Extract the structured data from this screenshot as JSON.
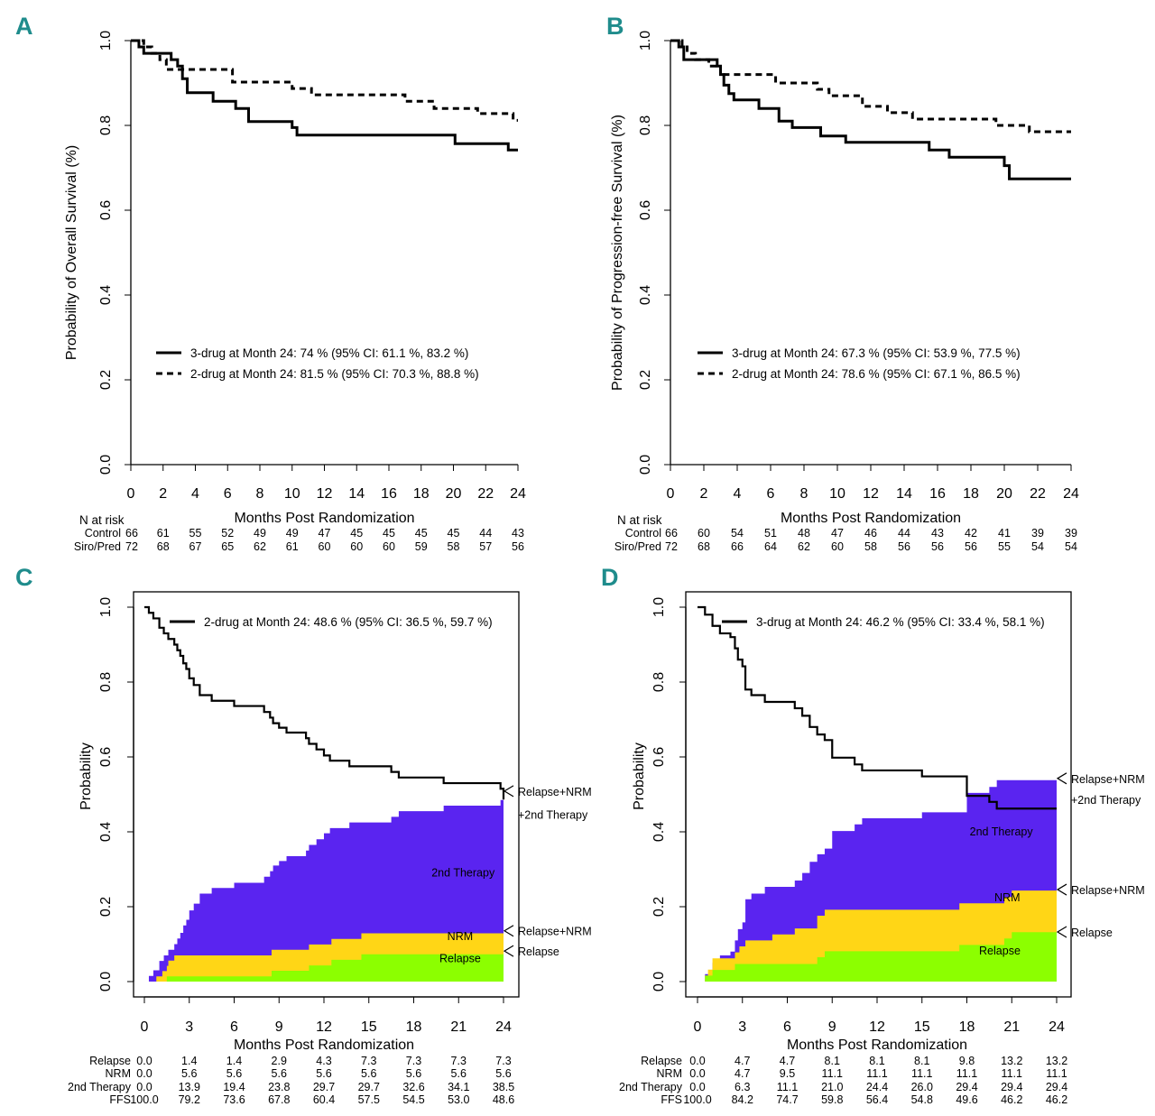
{
  "colors": {
    "letter": "#1f8c8c",
    "second_therapy": "#5a24f0",
    "nrm": "#ffd616",
    "relapse": "#8cff00",
    "inner_label_light": "#ffffff"
  },
  "chart_data": [
    {
      "panel": "A",
      "type": "line",
      "ylabel": "Probability of Overall Survival (%)",
      "xlabel": "Months Post Randomization",
      "xlim": [
        0,
        24
      ],
      "ylim": [
        0,
        1
      ],
      "xticks": [
        "0",
        "2",
        "4",
        "6",
        "8",
        "10",
        "12",
        "14",
        "16",
        "18",
        "20",
        "22",
        "24"
      ],
      "yticks": [
        "0.0",
        "0.2",
        "0.4",
        "0.6",
        "0.8",
        "1.0"
      ],
      "legend": [
        {
          "label": "3-drug at Month 24: 74 % (95% CI: 61.1 %, 83.2 %)",
          "style": "solid"
        },
        {
          "label": "2-drug at Month 24: 81.5 % (95% CI: 70.3 %, 88.8 %)",
          "style": "dashed"
        }
      ],
      "series": [
        {
          "name": "3-drug",
          "style": "solid",
          "steps": [
            [
              0,
              1
            ],
            [
              0.5,
              0.985
            ],
            [
              0.8,
              0.97
            ],
            [
              2.5,
              0.955
            ],
            [
              2.9,
              0.94
            ],
            [
              3.2,
              0.91
            ],
            [
              3.5,
              0.877
            ],
            [
              5.1,
              0.857
            ],
            [
              6.5,
              0.84
            ],
            [
              7.3,
              0.809
            ],
            [
              10,
              0.795
            ],
            [
              10.3,
              0.777
            ],
            [
              20.1,
              0.757
            ],
            [
              23.4,
              0.742
            ]
          ]
        },
        {
          "name": "2-drug",
          "style": "dashed",
          "steps": [
            [
              0,
              1
            ],
            [
              0.8,
              0.985
            ],
            [
              1.3,
              0.97
            ],
            [
              1.8,
              0.955
            ],
            [
              2.2,
              0.932
            ],
            [
              6.3,
              0.902
            ],
            [
              10,
              0.887
            ],
            [
              11.2,
              0.872
            ],
            [
              17,
              0.857
            ],
            [
              18.8,
              0.84
            ],
            [
              21.5,
              0.828
            ],
            [
              23.7,
              0.812
            ]
          ]
        }
      ],
      "risk_table": {
        "title": "N at risk",
        "rows": [
          {
            "label": "Control",
            "values": [
              "66",
              "61",
              "55",
              "52",
              "49",
              "49",
              "47",
              "45",
              "45",
              "45",
              "45",
              "44",
              "43"
            ]
          },
          {
            "label": "Siro/Pred",
            "values": [
              "72",
              "68",
              "67",
              "65",
              "62",
              "61",
              "60",
              "60",
              "60",
              "59",
              "58",
              "57",
              "56"
            ]
          }
        ]
      }
    },
    {
      "panel": "B",
      "type": "line",
      "ylabel": "Probability of Progression-free Survival (%)",
      "xlabel": "Months Post Randomization",
      "xlim": [
        0,
        24
      ],
      "ylim": [
        0,
        1
      ],
      "xticks": [
        "0",
        "2",
        "4",
        "6",
        "8",
        "10",
        "12",
        "14",
        "16",
        "18",
        "20",
        "22",
        "24"
      ],
      "yticks": [
        "0.0",
        "0.2",
        "0.4",
        "0.6",
        "0.8",
        "1.0"
      ],
      "legend": [
        {
          "label": "3-drug at Month 24: 67.3 % (95% CI: 53.9 %, 77.5 %)",
          "style": "solid"
        },
        {
          "label": "2-drug at Month 24: 78.6 % (95% CI: 67.1 %, 86.5 %)",
          "style": "dashed"
        }
      ],
      "series": [
        {
          "name": "3-drug",
          "style": "solid",
          "steps": [
            [
              0,
              1
            ],
            [
              0.5,
              0.985
            ],
            [
              0.8,
              0.955
            ],
            [
              2.8,
              0.94
            ],
            [
              3,
              0.92
            ],
            [
              3.2,
              0.895
            ],
            [
              3.5,
              0.875
            ],
            [
              3.8,
              0.86
            ],
            [
              5.3,
              0.84
            ],
            [
              6.5,
              0.81
            ],
            [
              7.3,
              0.795
            ],
            [
              9,
              0.775
            ],
            [
              10.5,
              0.76
            ],
            [
              15.5,
              0.742
            ],
            [
              16.7,
              0.725
            ],
            [
              20,
              0.705
            ],
            [
              20.3,
              0.674
            ]
          ]
        },
        {
          "name": "2-drug",
          "style": "dashed",
          "steps": [
            [
              0,
              1
            ],
            [
              0.7,
              0.985
            ],
            [
              1,
              0.97
            ],
            [
              1.5,
              0.955
            ],
            [
              2.3,
              0.94
            ],
            [
              3,
              0.92
            ],
            [
              6.3,
              0.9
            ],
            [
              8.8,
              0.885
            ],
            [
              9.5,
              0.87
            ],
            [
              11.5,
              0.845
            ],
            [
              13,
              0.83
            ],
            [
              14.5,
              0.815
            ],
            [
              19.5,
              0.8
            ],
            [
              21.5,
              0.785
            ]
          ]
        }
      ],
      "risk_table": {
        "title": "N at risk",
        "rows": [
          {
            "label": "Control",
            "values": [
              "66",
              "60",
              "54",
              "51",
              "48",
              "47",
              "46",
              "44",
              "43",
              "42",
              "41",
              "39",
              "39"
            ]
          },
          {
            "label": "Siro/Pred",
            "values": [
              "72",
              "68",
              "66",
              "64",
              "62",
              "60",
              "58",
              "56",
              "56",
              "56",
              "55",
              "54",
              "54"
            ]
          }
        ]
      }
    },
    {
      "panel": "C",
      "type": "area",
      "ylabel": "Probability",
      "xlabel": "Months Post Randomization",
      "xlim": [
        0,
        24
      ],
      "ylim": [
        0,
        1
      ],
      "xticks": [
        "0",
        "3",
        "6",
        "9",
        "12",
        "15",
        "18",
        "21",
        "24"
      ],
      "yticks": [
        "0.0",
        "0.2",
        "0.4",
        "0.6",
        "0.8",
        "1.0"
      ],
      "legend": [
        {
          "label": "2-drug at Month 24: 48.6 % (95% CI: 36.5 %, 59.7 %)",
          "style": "solid"
        }
      ],
      "ffs_steps": [
        [
          0,
          1
        ],
        [
          0.3,
          0.985
        ],
        [
          0.6,
          0.97
        ],
        [
          1,
          0.945
        ],
        [
          1.3,
          0.93
        ],
        [
          1.6,
          0.915
        ],
        [
          2,
          0.9
        ],
        [
          2.2,
          0.885
        ],
        [
          2.4,
          0.87
        ],
        [
          2.6,
          0.85
        ],
        [
          2.8,
          0.835
        ],
        [
          3,
          0.81
        ],
        [
          3.3,
          0.792
        ],
        [
          3.7,
          0.765
        ],
        [
          4.5,
          0.75
        ],
        [
          6,
          0.736
        ],
        [
          8,
          0.72
        ],
        [
          8.4,
          0.705
        ],
        [
          8.6,
          0.69
        ],
        [
          9,
          0.678
        ],
        [
          9.5,
          0.665
        ],
        [
          10.8,
          0.65
        ],
        [
          11,
          0.635
        ],
        [
          11.5,
          0.62
        ],
        [
          12,
          0.604
        ],
        [
          12.4,
          0.59
        ],
        [
          13.7,
          0.575
        ],
        [
          16.5,
          0.56
        ],
        [
          17,
          0.545
        ],
        [
          20,
          0.53
        ],
        [
          23.8,
          0.515
        ],
        [
          24,
          0.486
        ]
      ],
      "relapse_steps": [
        [
          0,
          0
        ],
        [
          1.5,
          0.014
        ],
        [
          8.5,
          0.029
        ],
        [
          11,
          0.043
        ],
        [
          12.5,
          0.058
        ],
        [
          14.5,
          0.073
        ]
      ],
      "nrm_steps": [
        [
          0,
          0
        ],
        [
          0.8,
          0.014
        ],
        [
          1.2,
          0.028
        ],
        [
          1.6,
          0.042
        ],
        [
          2,
          0.056
        ]
      ],
      "annotations": [
        {
          "text": "Relapse+NRM",
          "y": 0.499,
          "arrow": true
        },
        {
          "text": "+2nd Therapy",
          "y": 0.437,
          "arrow": false
        },
        {
          "text": "Relapse+NRM",
          "y": 0.126,
          "arrow": true
        },
        {
          "text": "Relapse",
          "y": 0.072,
          "arrow": true
        }
      ],
      "inner_labels": [
        {
          "text": "2nd Therapy",
          "x": 21.3,
          "y": 0.29,
          "light": true
        },
        {
          "text": "NRM",
          "x": 21.1,
          "y": 0.12,
          "light": false
        },
        {
          "text": "Relapse",
          "x": 21.1,
          "y": 0.062,
          "light": false
        }
      ],
      "risk_table": {
        "title": "",
        "rows": [
          {
            "label": "Relapse",
            "values": [
              "0.0",
              "1.4",
              "1.4",
              "2.9",
              "4.3",
              "7.3",
              "7.3",
              "7.3",
              "7.3"
            ]
          },
          {
            "label": "NRM",
            "values": [
              "0.0",
              "5.6",
              "5.6",
              "5.6",
              "5.6",
              "5.6",
              "5.6",
              "5.6",
              "5.6"
            ]
          },
          {
            "label": "2nd Therapy",
            "values": [
              "0.0",
              "13.9",
              "19.4",
              "23.8",
              "29.7",
              "29.7",
              "32.6",
              "34.1",
              "38.5"
            ]
          },
          {
            "label": "FFS",
            "values": [
              "100.0",
              "79.2",
              "73.6",
              "67.8",
              "60.4",
              "57.5",
              "54.5",
              "53.0",
              "48.6"
            ]
          }
        ]
      }
    },
    {
      "panel": "D",
      "type": "area",
      "ylabel": "Probability",
      "xlabel": "Months Post Randomization",
      "xlim": [
        0,
        24
      ],
      "ylim": [
        0,
        1
      ],
      "xticks": [
        "0",
        "3",
        "6",
        "9",
        "12",
        "15",
        "18",
        "21",
        "24"
      ],
      "yticks": [
        "0.0",
        "0.2",
        "0.4",
        "0.6",
        "0.8",
        "1.0"
      ],
      "legend": [
        {
          "label": "3-drug at Month 24: 46.2 % (95% CI: 33.4 %, 58.1 %)",
          "style": "solid"
        }
      ],
      "ffs_steps": [
        [
          0,
          1
        ],
        [
          0.5,
          0.98
        ],
        [
          1,
          0.95
        ],
        [
          1.5,
          0.93
        ],
        [
          2.2,
          0.92
        ],
        [
          2.5,
          0.89
        ],
        [
          2.7,
          0.86
        ],
        [
          3,
          0.842
        ],
        [
          3.2,
          0.78
        ],
        [
          3.6,
          0.765
        ],
        [
          4.5,
          0.747
        ],
        [
          6.5,
          0.73
        ],
        [
          7,
          0.71
        ],
        [
          7.5,
          0.68
        ],
        [
          8,
          0.66
        ],
        [
          8.5,
          0.645
        ],
        [
          9,
          0.598
        ],
        [
          10.5,
          0.58
        ],
        [
          11,
          0.564
        ],
        [
          15,
          0.548
        ],
        [
          18,
          0.496
        ],
        [
          19.5,
          0.48
        ],
        [
          20,
          0.462
        ]
      ],
      "relapse_steps": [
        [
          0,
          0
        ],
        [
          0.5,
          0.016
        ],
        [
          1,
          0.031
        ],
        [
          2.5,
          0.047
        ],
        [
          8,
          0.065
        ],
        [
          8.5,
          0.081
        ],
        [
          17.5,
          0.098
        ],
        [
          20.5,
          0.115
        ],
        [
          21,
          0.132
        ]
      ],
      "nrm_steps": [
        [
          0,
          0
        ],
        [
          0.7,
          0.016
        ],
        [
          1,
          0.031
        ],
        [
          2.8,
          0.047
        ],
        [
          3.2,
          0.063
        ],
        [
          5,
          0.079
        ],
        [
          6.5,
          0.095
        ],
        [
          8,
          0.111
        ]
      ],
      "annotations": [
        {
          "text": "Relapse+NRM",
          "y": 0.533,
          "arrow": true
        },
        {
          "text": "+2nd Therapy",
          "y": 0.477,
          "arrow": false
        },
        {
          "text": "Relapse+NRM",
          "y": 0.236,
          "arrow": true
        },
        {
          "text": "Relapse",
          "y": 0.123,
          "arrow": true
        }
      ],
      "inner_labels": [
        {
          "text": "2nd Therapy",
          "x": 20.3,
          "y": 0.4,
          "light": true
        },
        {
          "text": "NRM",
          "x": 20.7,
          "y": 0.224,
          "light": false
        },
        {
          "text": "Relapse",
          "x": 20.2,
          "y": 0.082,
          "light": false
        }
      ],
      "risk_table": {
        "title": "",
        "rows": [
          {
            "label": "Relapse",
            "values": [
              "0.0",
              "4.7",
              "4.7",
              "8.1",
              "8.1",
              "8.1",
              "9.8",
              "13.2",
              "13.2"
            ]
          },
          {
            "label": "NRM",
            "values": [
              "0.0",
              "4.7",
              "9.5",
              "11.1",
              "11.1",
              "11.1",
              "11.1",
              "11.1",
              "11.1"
            ]
          },
          {
            "label": "2nd Therapy",
            "values": [
              "0.0",
              "6.3",
              "11.1",
              "21.0",
              "24.4",
              "26.0",
              "29.4",
              "29.4",
              "29.4"
            ]
          },
          {
            "label": "FFS",
            "values": [
              "100.0",
              "84.2",
              "74.7",
              "59.8",
              "56.4",
              "54.8",
              "49.6",
              "46.2",
              "46.2"
            ]
          }
        ]
      }
    }
  ]
}
